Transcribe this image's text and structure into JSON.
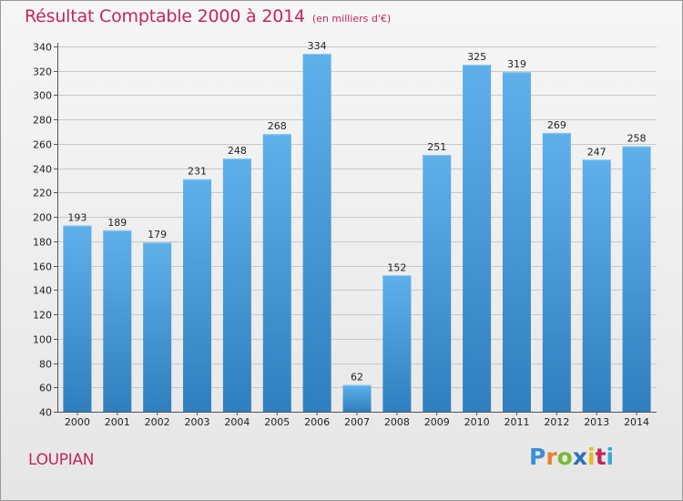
{
  "title": "Résultat Comptable 2000 à 2014",
  "subtitle": "(en milliers d'€)",
  "location": "LOUPIAN",
  "logo": {
    "text": "Proxiti",
    "letters": [
      {
        "char": "P",
        "color": "#3a8fd6"
      },
      {
        "char": "r",
        "color": "#e8832a"
      },
      {
        "char": "o",
        "color": "#7ab83a"
      },
      {
        "char": "x",
        "color": "#2d6fb8"
      },
      {
        "char": "i",
        "color": "#e5ba23"
      },
      {
        "char": "t",
        "color": "#c2275a"
      },
      {
        "char": "i",
        "color": "#3aa9d6"
      }
    ]
  },
  "colors": {
    "title": "#c2275a",
    "bar_top": "#5fb0ea",
    "bar_bottom": "#2f7fbf",
    "grid": "#c8c8c8"
  },
  "chart_data": {
    "type": "bar",
    "title": "Résultat Comptable 2000 à 2014",
    "subtitle": "(en milliers d'€)",
    "categories": [
      "2000",
      "2001",
      "2002",
      "2003",
      "2004",
      "2005",
      "2006",
      "2007",
      "2008",
      "2009",
      "2010",
      "2011",
      "2012",
      "2013",
      "2014"
    ],
    "values": [
      193,
      189,
      179,
      231,
      248,
      268,
      334,
      62,
      152,
      251,
      325,
      319,
      269,
      247,
      258
    ],
    "ylim": [
      40,
      340
    ],
    "yticks": [
      40,
      60,
      80,
      100,
      120,
      140,
      160,
      180,
      200,
      220,
      240,
      260,
      280,
      300,
      320,
      340
    ],
    "grid": true,
    "xlabel": "",
    "ylabel": ""
  }
}
